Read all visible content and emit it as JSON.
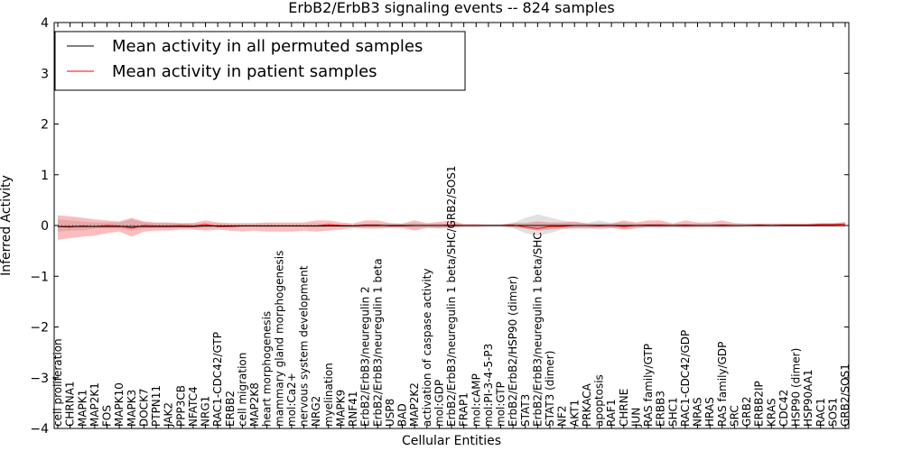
{
  "chart_data": {
    "type": "line",
    "title": "ErbB2/ErbB3 signaling events -- 824 samples",
    "xlabel": "Cellular Entities",
    "ylabel": "Inferred Activity",
    "ylim": [
      -4,
      4
    ],
    "yticks": [
      "4",
      "3",
      "2",
      "1",
      "0",
      "−1",
      "−2",
      "−3",
      "−4"
    ],
    "legend_position": "top-left",
    "grid": false,
    "categories": [
      "cell proliferation",
      "CHRNA1",
      "MAPK1",
      "MAP2K1",
      "FOS",
      "MAPK10",
      "MAPK3",
      "DOCK7",
      "PTPN11",
      "JAK2",
      "PPP3CB",
      "NFATC4",
      "NRG1",
      "RAC1-CDC42/GTP",
      "ERBB2",
      "cell migration",
      "MAP2K8",
      "heart morphogenesis",
      "mammary gland morphogenesis",
      "mol:Ca2+",
      "nervous system development",
      "NRG2",
      "myelination",
      "MAPK9",
      "RNF41",
      "ErbB2/ErbB3/neuregulin 2",
      "ErbB2/ErbB3/neuregulin 1 beta",
      "USP8",
      "BAD",
      "MAP2K2",
      "activation of caspase activity",
      "mol:GDP",
      "ErbB2/ErbB3/neuregulin 1 beta/SHC/GRB2/SOS1",
      "FRAP1",
      "mol:cAMP",
      "mol:PI-3-4-5-P3",
      "mol:GTP",
      "ErbB2/ErbB2/HSP90 (dimer)",
      "STAT3",
      "ErbB2/ErbB3/neuregulin 1 beta/SHC",
      "STAT3 (dimer)",
      "NF2",
      "AKT1",
      "PRKACA",
      "apoptosis",
      "RAF1",
      "CHRNE",
      "JUN",
      "RAS family/GTP",
      "ERBB3",
      "SHC1",
      "RAC1-CDC42/GDP",
      "NRAS",
      "HRAS",
      "RAS family/GDP",
      "SRC",
      "GRB2",
      "ERBB2IP",
      "KRAS",
      "CDC42",
      "HSP90 (dimer)",
      "HSP90AA1",
      "RAC1",
      "SOS1",
      "GRB2/SOS1"
    ],
    "series": [
      {
        "name": "Mean activity in all permuted samples",
        "color": "#000000",
        "values": [
          -0.02,
          -0.02,
          -0.02,
          -0.02,
          -0.02,
          -0.02,
          -0.02,
          -0.02,
          -0.02,
          -0.02,
          -0.02,
          -0.02,
          -0.01,
          -0.01,
          -0.01,
          -0.01,
          -0.01,
          -0.01,
          -0.01,
          -0.01,
          -0.01,
          -0.01,
          -0.01,
          -0.01,
          -0.01,
          0.0,
          0.0,
          0.0,
          0.0,
          0.0,
          0.0,
          0.0,
          0.0,
          0.0,
          0.0,
          0.0,
          0.0,
          0.0,
          0.0,
          0.0,
          0.0,
          0.0,
          0.0,
          0.0,
          0.0,
          0.0,
          0.0,
          0.0,
          0.0,
          0.0,
          0.0,
          0.0,
          0.0,
          0.0,
          0.0,
          0.0,
          0.0,
          0.0,
          0.0,
          0.0,
          0.0,
          0.0,
          0.0,
          0.0,
          0.0
        ],
        "band_low": [
          -0.12,
          -0.1,
          -0.1,
          -0.06,
          -0.06,
          -0.06,
          -0.1,
          -0.06,
          -0.05,
          -0.05,
          -0.04,
          -0.04,
          -0.05,
          -0.04,
          -0.03,
          -0.03,
          -0.03,
          -0.04,
          -0.03,
          -0.03,
          -0.03,
          -0.04,
          -0.03,
          -0.03,
          -0.02,
          -0.04,
          -0.04,
          -0.03,
          -0.03,
          -0.05,
          -0.03,
          -0.04,
          -0.03,
          -0.02,
          -0.02,
          -0.02,
          -0.02,
          -0.05,
          -0.15,
          -0.2,
          -0.15,
          -0.08,
          -0.05,
          -0.05,
          -0.08,
          -0.05,
          -0.06,
          -0.04,
          -0.04,
          -0.05,
          -0.03,
          -0.04,
          -0.04,
          -0.03,
          -0.04,
          -0.03,
          -0.03,
          -0.03,
          -0.03,
          -0.03,
          -0.03,
          -0.03,
          -0.03,
          -0.03,
          -0.03
        ],
        "band_high": [
          0.12,
          0.1,
          0.08,
          0.06,
          0.06,
          0.06,
          0.12,
          0.06,
          0.05,
          0.05,
          0.04,
          0.04,
          0.05,
          0.04,
          0.03,
          0.03,
          0.03,
          0.04,
          0.03,
          0.03,
          0.03,
          0.04,
          0.03,
          0.03,
          0.02,
          0.04,
          0.04,
          0.03,
          0.03,
          0.05,
          0.03,
          0.04,
          0.03,
          0.02,
          0.02,
          0.02,
          0.02,
          0.05,
          0.15,
          0.22,
          0.16,
          0.1,
          0.06,
          0.05,
          0.1,
          0.05,
          0.06,
          0.04,
          0.04,
          0.05,
          0.03,
          0.04,
          0.04,
          0.03,
          0.04,
          0.03,
          0.03,
          0.03,
          0.03,
          0.03,
          0.03,
          0.03,
          0.03,
          0.03,
          0.03
        ]
      },
      {
        "name": "Mean activity in patient samples",
        "color": "#ff0000",
        "values": [
          -0.02,
          -0.03,
          -0.01,
          -0.02,
          0.0,
          -0.01,
          -0.05,
          0.0,
          -0.01,
          -0.01,
          0.0,
          -0.01,
          0.02,
          -0.02,
          -0.02,
          -0.01,
          -0.01,
          -0.01,
          -0.01,
          -0.01,
          -0.01,
          -0.01,
          0.02,
          0.0,
          -0.01,
          0.01,
          0.01,
          -0.01,
          -0.01,
          0.0,
          0.0,
          0.0,
          0.01,
          0.0,
          0.0,
          0.0,
          0.0,
          0.01,
          -0.03,
          -0.06,
          -0.02,
          -0.02,
          0.0,
          0.0,
          -0.01,
          0.0,
          -0.02,
          0.0,
          0.01,
          0.01,
          0.0,
          0.01,
          0.0,
          0.0,
          0.01,
          0.0,
          0.0,
          0.01,
          0.0,
          0.01,
          0.01,
          0.01,
          0.02,
          0.02,
          0.03
        ],
        "band_low": [
          -0.28,
          -0.25,
          -0.22,
          -0.2,
          -0.15,
          -0.12,
          -0.22,
          -0.12,
          -0.1,
          -0.1,
          -0.08,
          -0.08,
          -0.1,
          -0.08,
          -0.1,
          -0.12,
          -0.1,
          -0.12,
          -0.12,
          -0.12,
          -0.1,
          -0.12,
          -0.1,
          -0.08,
          -0.05,
          -0.06,
          -0.06,
          -0.05,
          -0.05,
          -0.1,
          -0.05,
          -0.06,
          -0.05,
          -0.03,
          -0.03,
          -0.02,
          -0.02,
          -0.04,
          -0.06,
          -0.1,
          -0.08,
          -0.06,
          -0.06,
          -0.06,
          -0.05,
          -0.05,
          -0.08,
          -0.06,
          -0.03,
          -0.03,
          -0.03,
          -0.04,
          -0.03,
          -0.03,
          -0.03,
          -0.03,
          -0.02,
          -0.02,
          -0.02,
          -0.02,
          -0.02,
          -0.02,
          -0.02,
          -0.02,
          -0.02
        ],
        "band_high": [
          0.2,
          0.18,
          0.15,
          0.12,
          0.1,
          0.08,
          0.15,
          0.08,
          0.06,
          0.06,
          0.05,
          0.05,
          0.1,
          0.06,
          0.05,
          0.05,
          0.05,
          0.06,
          0.06,
          0.06,
          0.06,
          0.1,
          0.1,
          0.06,
          0.04,
          0.1,
          0.1,
          0.05,
          0.04,
          0.1,
          0.05,
          0.07,
          0.1,
          0.03,
          0.03,
          0.02,
          0.02,
          0.05,
          0.05,
          0.08,
          0.06,
          0.06,
          0.08,
          0.04,
          0.04,
          0.04,
          0.1,
          0.06,
          0.1,
          0.1,
          0.04,
          0.1,
          0.06,
          0.06,
          0.1,
          0.05,
          0.04,
          0.04,
          0.04,
          0.04,
          0.04,
          0.04,
          0.05,
          0.05,
          0.07
        ]
      }
    ]
  }
}
